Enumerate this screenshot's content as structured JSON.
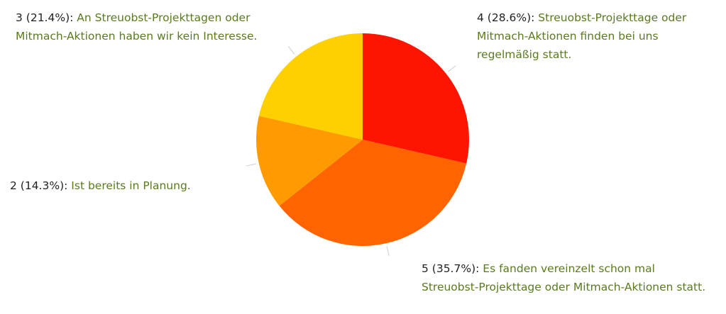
{
  "chart_data": {
    "type": "pie",
    "categories": [
      "Streuobst-Projekttage oder Mitmach-Aktionen finden bei uns regelmäßig statt.",
      "Es fanden vereinzelt schon mal Streuobst-Projekttage oder Mitmach-Aktionen statt.",
      "Ist bereits in Planung.",
      "An Streuobst-Projekttagen oder Mitmach-Aktionen haben wir kein Interesse."
    ],
    "values": [
      28.6,
      35.7,
      14.3,
      21.4
    ],
    "value_labels": [
      "4 (28.6%):",
      "5 (35.7%):",
      "2 (14.3%):",
      "3 (21.4%):"
    ],
    "colors": [
      "#ff1400",
      "#ff6400",
      "#ff9a00",
      "#ffd000"
    ]
  }
}
